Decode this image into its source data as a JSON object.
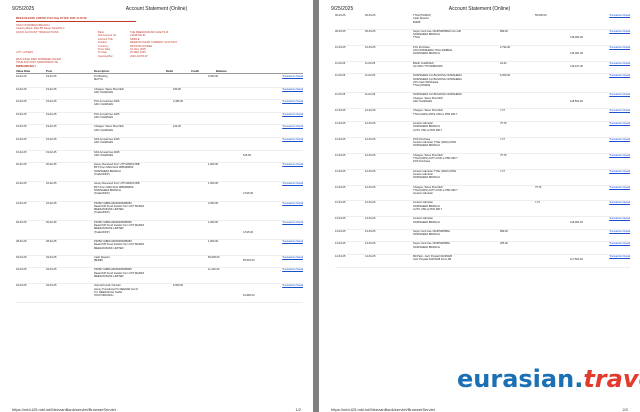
{
  "page1": {
    "date": "9/25/2025",
    "title": "Account Statement (Online)",
    "statement": {
      "title": "MEEZAN BANK LIMITED Print Date  25 SEP, 2025 11:05:59",
      "bank_lines": [
        "OSCO NORWEEN BRANCH",
        "Clearing Bank: Main BT Road, Tehsil/No.4",
        "QUICK ACCOUNT TRANSACTIONS"
      ],
      "account": [
        {
          "k": "Bank",
          "v": "THE MEEZAN BANK KHALTS-M"
        },
        {
          "k": "D/A Account No",
          "v": "2194547E-IN"
        },
        {
          "k": "Account Title",
          "v": "SIMPLE"
        },
        {
          "k": "Product",
          "v": "MEEZAN ASAAN CURRENT ACCOUNT"
        },
        {
          "k": "Currency",
          "v": "PAKISTAN RUPEE"
        },
        {
          "k": "From Date",
          "v": "01 JAN, 2025"
        },
        {
          "k": "To Date",
          "v": "25 SEP, 2025"
        },
        {
          "k": "Opening Bal",
          "v": "2020-10-PR-97"
        }
      ],
      "address_lines": [
        "CITY LOTERS",
        "",
        "WHO KASH RIND NORWEEN SALEM",
        "TRUE KINT-NWT NOWWNSHIP-TE",
        "8SB8LOWTEL"
      ],
      "subtitle": "SHCAPHOBS"
    },
    "columns": [
      "Value Date",
      "Post",
      "Description",
      "Debit",
      "Credit",
      "Balance",
      ""
    ],
    "rows": [
      {
        "date": "19-02-25",
        "post": "19-02-25",
        "desc": [
          "FO Booking",
          "MATTH"
        ],
        "debit": "",
        "credit": "5,000.00",
        "balance": "",
        "link": "Transaction Detail"
      },
      {
        "date": "19-02-25",
        "post": "19-02-25",
        "desc": [
          "Charges: Taxes Plus FED",
          "ADC CHARGES"
        ],
        "debit": "180.00",
        "credit": "",
        "balance": "",
        "link": "Transaction Detail"
      },
      {
        "date": "19-02-25",
        "post": "19-02-25",
        "desc": [
          "POL Annual Fee 2025",
          "ADC CHARGES"
        ],
        "debit": "2,495.00",
        "credit": "",
        "balance": "",
        "link": "Transaction Detail"
      },
      {
        "date": "19-02-25",
        "post": "19-02-25",
        "desc": [
          "POL Annual Fee 2025",
          "ADC CHARGES"
        ],
        "debit": "",
        "credit": "",
        "balance": "",
        "link": "Transaction Detail"
      },
      {
        "date": "19-02-25",
        "post": "19-02-25",
        "desc": [
          "Charges: Taxes Plus FED",
          "ADC CHARGES"
        ],
        "debit": "122.00",
        "credit": "",
        "balance": "",
        "link": "Transaction Detail"
      },
      {
        "date": "19-02-25",
        "post": "19-02-25",
        "desc": [
          "SAS Annual Fee 2025",
          "ADC CHARGES"
        ],
        "debit": "",
        "credit": "",
        "balance": "",
        "link": "Transaction Detail"
      },
      {
        "date": "19-02-25",
        "post": "19-02-25",
        "desc": [
          "SAS Annual Fee 2025",
          "ADC CHARGES"
        ],
        "debit": "",
        "credit": "",
        "balance": "515.00",
        "link": ""
      },
      {
        "date": "20-02-25",
        "post": "20-02-25",
        "desc": [
          "Honey Received from UTP MARKZ BIB",
          "BFT From MSA 0112 0865289659",
          "NOWSHERA BRANCH",
          "(TradeONFP)"
        ],
        "debit": "",
        "credit": "1,000.00",
        "balance": "",
        "link": "Transaction Detail"
      },
      {
        "date": "22-02-25",
        "post": "22-02-25",
        "desc": [
          "Honey Received from UTP MARKZ BIB",
          "BFT From MSA 0112 0865289659",
          "NOWSHERA BRANCH",
          "(TradeONFP)"
        ],
        "debit": "",
        "credit": "1,000.00",
        "balance": "2,515.00",
        "link": "Transaction Detail"
      },
      {
        "date": "24-02-25",
        "post": "24-02-25",
        "desc": [
          "PK05HYHB01119000005286659",
          "Raast P2P Fund transfer from UTP MARKZ",
          "MEEZAN BANK LIMITED",
          "(TradeONFP)"
        ],
        "debit": "",
        "credit": "2,000.00",
        "balance": "",
        "link": "Transaction Detail"
      },
      {
        "date": "26-02-25",
        "post": "26-02-25",
        "desc": [
          "PK05HYHB01119000005286659",
          "Raast P2P Fund transfer from UTP MARKZ",
          "MEEZAN BANK LIMITED",
          "(TradeONFP)"
        ],
        "debit": "",
        "credit": "1,000.00",
        "balance": "4,515.00",
        "link": "Transaction Detail"
      },
      {
        "date": "28-02-25",
        "post": "28-02-25",
        "desc": [
          "PK05HYHB01119000005286659",
          "Raast P2P Fund transfer from UTP MARKZ",
          "MEEZAN BANK LIMITED"
        ],
        "debit": "",
        "credit": "1,000.00",
        "balance": "",
        "link": "Transaction Detail"
      },
      {
        "date": "03-03-25",
        "post": "03-03-25",
        "desc": [
          "Cash Deposit",
          "[BHMP]"
        ],
        "debit": "",
        "credit": "50,000.00",
        "balance": "55,515.00",
        "link": "Transaction Detail"
      },
      {
        "date": "04-03-25",
        "post": "04-03-25",
        "desc": [
          "PK05HYHB01119000005286659",
          "Raast P2P Fund transfer from UTP MARKZ",
          "MEEZAN BANK LIMITED"
        ],
        "debit": "",
        "credit": "11,145.00",
        "balance": "",
        "link": "Transaction Detail"
      },
      {
        "date": "04-03-25",
        "post": "04-03-25",
        "desc": [
          "Internal Funds Transfer",
          "Honey Transferred To DEENAR ALI M",
          "TO: DEENAR ALI SHAH",
          "OSCO BRANCH"
        ],
        "debit": "6,000.00",
        "credit": "",
        "balance": "61,960.00",
        "link": "Transaction Detail"
      }
    ],
    "footer_url": "https://mbl-t25.mbl.int/MeezanBank/servlet/BrowserServlet",
    "footer_page": "1/2"
  },
  "page2": {
    "date": "9/25/2025",
    "title": "Account Statement (Online)",
    "rows": [
      {
        "date": "06-03-25",
        "post": "06-03-25",
        "desc": [
          "TTAH [TRADO]",
          "Cash Deposit",
          "BHMP"
        ],
        "debit": "",
        "credit": "55,000.00",
        "balance": "",
        "link": "Transaction Detail"
      },
      {
        "date": "06-03-25",
        "post": "06-03-25",
        "desc": [
          "Super Card Use ON4P9W50BH From AB",
          "NOWSHERA BRANCH",
          "TTAH"
        ],
        "debit": "899.00",
        "credit": "",
        "balance": "136,962.00",
        "link": "Transaction Detail"
      },
      {
        "date": "10-03-25",
        "post": "10-03-25",
        "desc": [
          "POL Purchase",
          "C02 NOWSHERA TTAH (FEBRAL",
          "NOWSHERA BRANCH"
        ],
        "debit": "2,794.00",
        "credit": "",
        "balance": "134,961.00",
        "link": "Transaction Detail"
      },
      {
        "date": "11-03-25",
        "post": "11-03-25",
        "desc": [
          "BANK CHARGES",
          "AC INSU TTUSDBISORS"
        ],
        "debit": "22.44",
        "credit": "",
        "balance": "133,167.00",
        "link": "Transaction Detail"
      },
      {
        "date": "11-03-25",
        "post": "11-03-25",
        "desc": [
          "NOWSHERA Cnt BUILDING NOWSHERA",
          "NOWSHERA Cnt BUILDING NOWSHERA",
          "ATS Cash Withdrawal",
          "TTAH (NSWM)"
        ],
        "debit": "6,000.00",
        "credit": "",
        "balance": "",
        "link": "Transaction Detail"
      },
      {
        "date": "11-03-25",
        "post": "11-03-25",
        "desc": [
          "NOWSHERA Cnt BUILDING NOWSHERA",
          "Charges: Taxes Plus FED",
          "ADC CHARGES"
        ],
        "debit": "",
        "credit": "",
        "balance": "118,502.00",
        "link": "Transaction Detail"
      },
      {
        "date": "12-03-25",
        "post": "12-03-25",
        "desc": [
          "Charges: Taxes Plus FED",
          "TTAH (AWS) ANTE USD w PKR 280.7"
        ],
        "debit": "7.27",
        "credit": "",
        "balance": "",
        "link": "Transaction Detail"
      },
      {
        "date": "12-03-25",
        "post": "12-03-25",
        "desc": [
          "Amazon AE letter",
          "NOWSHERA BRANCH",
          "AUTO USD w PKR 280.7"
        ],
        "debit": "75.76",
        "credit": "",
        "balance": "",
        "link": "Transaction Detail"
      },
      {
        "date": "12-03-25",
        "post": "12-03-25",
        "desc": [
          "POS Purchase",
          "Amazon AE letter TTAH (AWS) ANTE",
          "NOWSHERA BRANCH"
        ],
        "debit": "7.27",
        "credit": "",
        "balance": "",
        "link": "Transaction Detail"
      },
      {
        "date": "12-03-25",
        "post": "12-03-25",
        "desc": [
          "Charges: Taxes Plus FED",
          "TTAH (AWS) AUTO USD w PKR 280.7",
          "POS Purchase"
        ],
        "debit": "75.76",
        "credit": "",
        "balance": "",
        "link": "Transaction Detail"
      },
      {
        "date": "12-03-25",
        "post": "12-03-25",
        "desc": [
          "Amazon AE letter TTAH (AWS) ANTE",
          "Amazon AE letter",
          "NOWSHERA BRANCH"
        ],
        "debit": "7.27",
        "credit": "",
        "balance": "",
        "link": "Transaction Detail"
      },
      {
        "date": "12-03-25",
        "post": "12-03-25",
        "desc": [
          "Charges: Taxes Plus FED",
          "TTAH (AWS) AUTO USD w PKR 280.7",
          "Amazon AE letter"
        ],
        "debit": "",
        "credit": "75.76",
        "balance": "",
        "link": "Transaction Detail"
      },
      {
        "date": "12-03-25",
        "post": "12-03-25",
        "desc": [
          "Amazon AE letter",
          "NOWSHERA BRANCH",
          "AUTO USD w PKR 280.7"
        ],
        "debit": "",
        "credit": "7.27",
        "balance": "",
        "link": "Transaction Detail"
      },
      {
        "date": "13-03-25",
        "post": "13-03-25",
        "desc": [
          "Amazon AE letter",
          "NOWSHERA BRANCH"
        ],
        "debit": "",
        "credit": "",
        "balance": "118,282.00",
        "link": "Transaction Detail"
      },
      {
        "date": "13-03-25",
        "post": "13-03-25",
        "desc": [
          "Super Card Use ON4P9W50BH",
          "NOWSHERA BRANCH"
        ],
        "debit": "899.00",
        "credit": "",
        "balance": "",
        "link": "Transaction Detail"
      },
      {
        "date": "13-03-25",
        "post": "13-03-25",
        "desc": [
          "Super Card Use ON4P9W50BH",
          "NOWSHERA BRANCH"
        ],
        "debit": "265.00",
        "credit": "",
        "balance": "",
        "link": "Transaction Detail"
      },
      {
        "date": "14-03-25",
        "post": "14-03-25",
        "desc": [
          "Bill Paid - Jazz Prepaid 03215028",
          "Jazz Prepaid 03215028 From AB"
        ],
        "debit": "",
        "credit": "",
        "balance": "117,564.00",
        "link": "Transaction Detail"
      }
    ],
    "footer_url": "https://mbl-t25.mbl.int/MeezanBank/servlet/BrowserServlet",
    "footer_page": "2/2"
  },
  "logo": {
    "part1": "eurasian.",
    "part2": "travels"
  }
}
